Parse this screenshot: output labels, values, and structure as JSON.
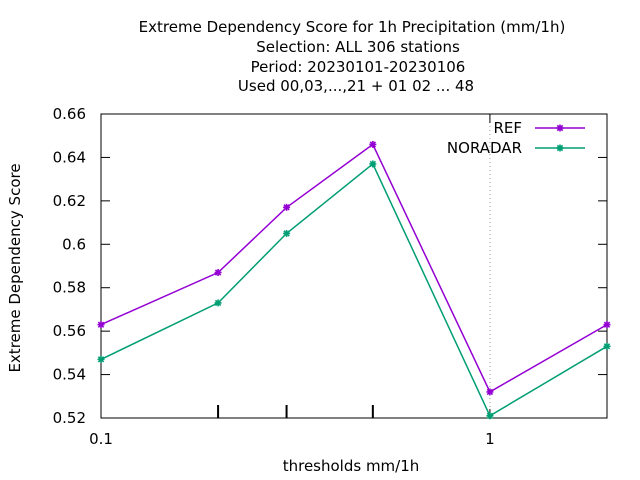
{
  "chart_data": {
    "type": "line",
    "title_lines": [
      "Extreme Dependency Score  for 1h Precipitation (mm/1h)",
      "Selection: ALL    306 stations",
      "Period: 20230101-20230106",
      "Used  00,03,...,21  + 01 02 ... 48"
    ],
    "xlabel": "thresholds mm/1h",
    "ylabel": "Extreme Dependency Score",
    "x_scale": "log",
    "xlim": [
      0.1,
      2
    ],
    "ylim": [
      0.52,
      0.66
    ],
    "x_ticks": [
      {
        "value": 0.1,
        "label": "0.1"
      },
      {
        "value": 1,
        "label": "1"
      }
    ],
    "x_minor_ticks": [
      0.2,
      0.3,
      0.5
    ],
    "y_ticks": [
      {
        "value": 0.52,
        "label": "0.52"
      },
      {
        "value": 0.54,
        "label": "0.54"
      },
      {
        "value": 0.56,
        "label": "0.56"
      },
      {
        "value": 0.58,
        "label": "0.58"
      },
      {
        "value": 0.6,
        "label": "0.6"
      },
      {
        "value": 0.62,
        "label": "0.62"
      },
      {
        "value": 0.64,
        "label": "0.64"
      },
      {
        "value": 0.66,
        "label": "0.66"
      }
    ],
    "grid": "dotted at major x tick 1",
    "legend_position": "top-right",
    "x": [
      0.1,
      0.2,
      0.3,
      0.5,
      1,
      2
    ],
    "series": [
      {
        "name": "REF",
        "color": "#9400d3",
        "values": [
          0.563,
          0.587,
          0.617,
          0.646,
          0.532,
          0.563
        ]
      },
      {
        "name": "NORADAR",
        "color": "#009e73",
        "values": [
          0.547,
          0.573,
          0.605,
          0.637,
          0.521,
          0.553
        ]
      }
    ]
  }
}
